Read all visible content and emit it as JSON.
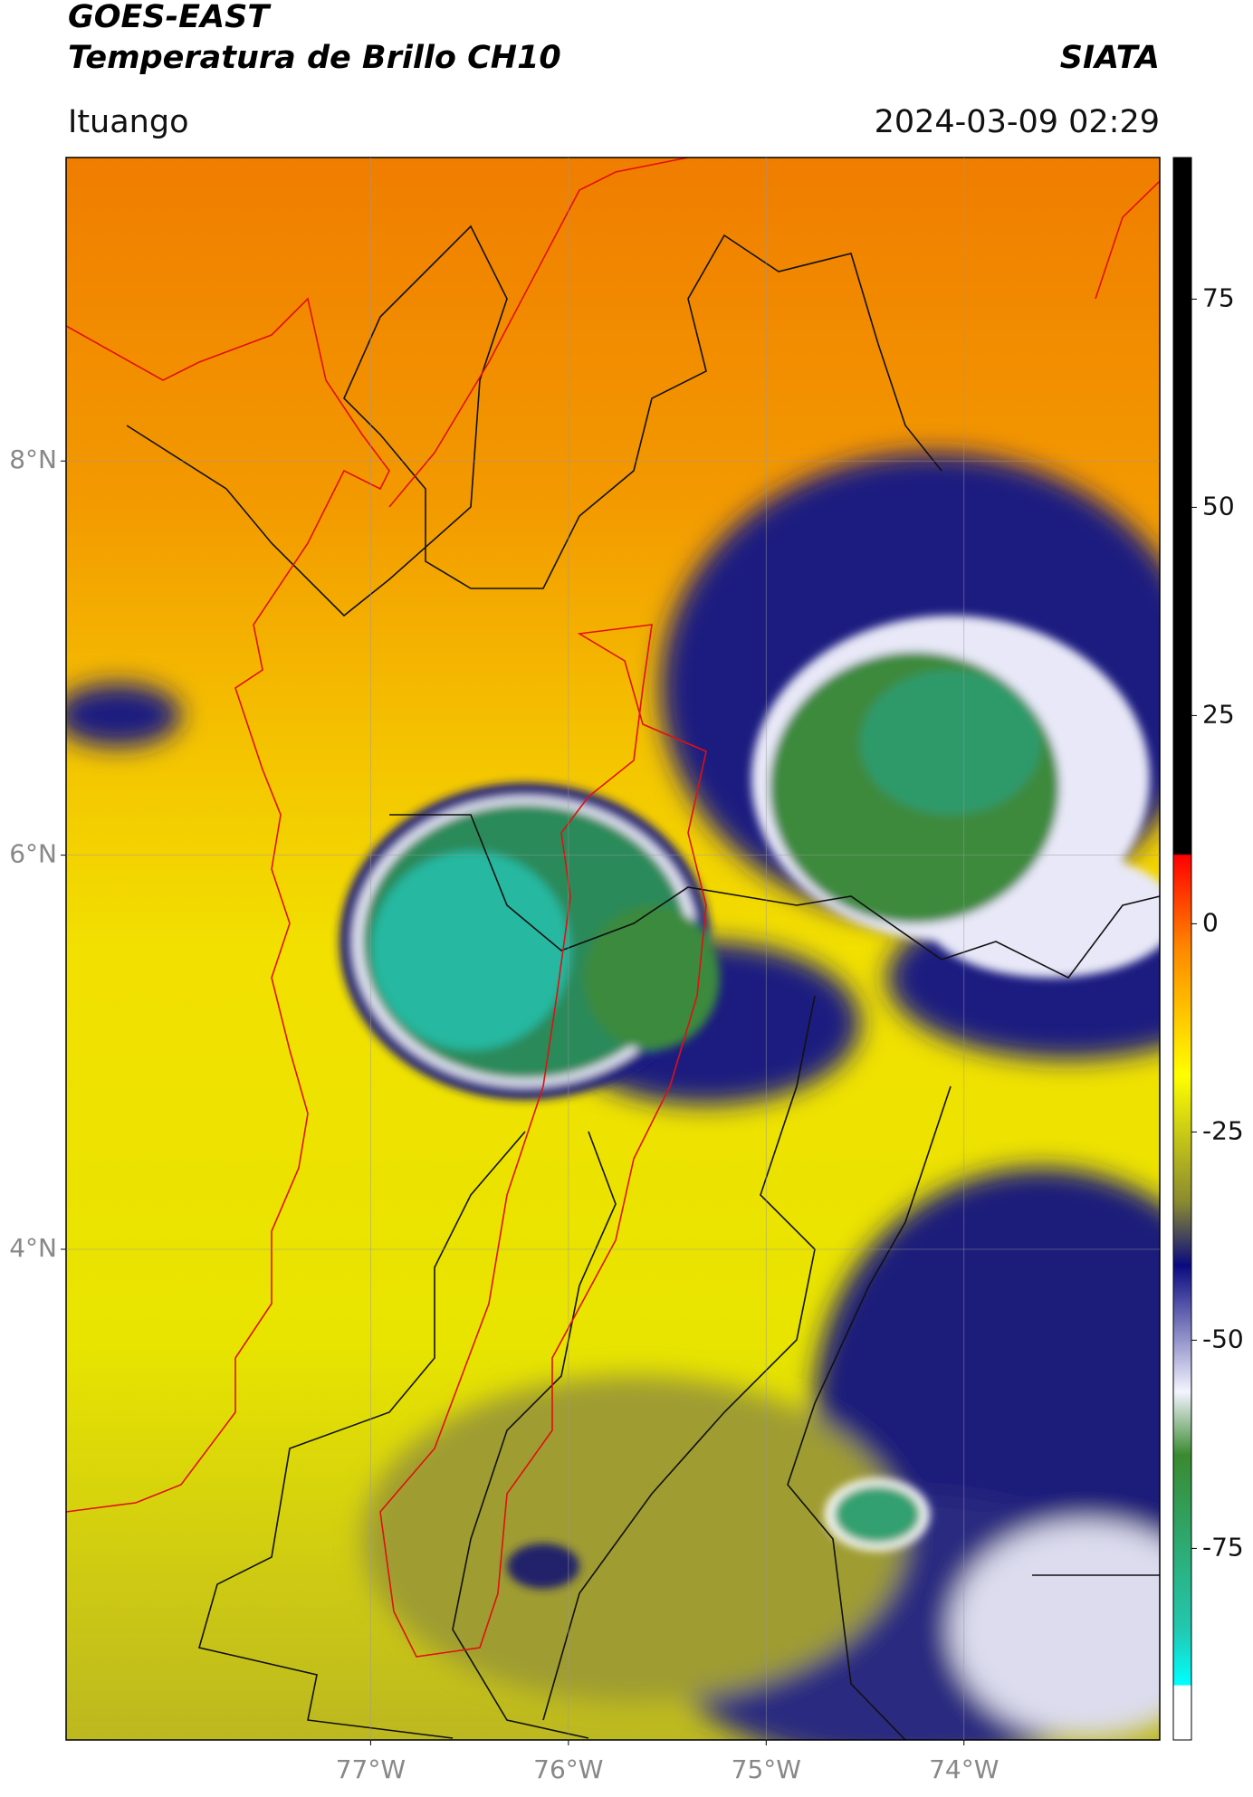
{
  "header": {
    "satellite": "GOES-EAST",
    "product": "Temperatura de Brillo CH10",
    "org": "SIATA",
    "region": "Ituango",
    "datetime": "2024-03-09 02:29"
  },
  "map": {
    "lonlim": [
      -78.54,
      -73.01
    ],
    "latlim": [
      1.51,
      9.54
    ],
    "lat_ticks": [
      {
        "value": 8,
        "label": "8°N"
      },
      {
        "value": 6,
        "label": "6°N"
      },
      {
        "value": 4,
        "label": "4°N"
      }
    ],
    "lon_ticks": [
      {
        "value": -77,
        "label": "77°W"
      },
      {
        "value": -76,
        "label": "76°W"
      },
      {
        "value": -75,
        "label": "75°W"
      },
      {
        "value": -74,
        "label": "74°W"
      }
    ]
  },
  "colorbar": {
    "lim": [
      -98,
      92
    ],
    "ticks": [
      -75,
      -50,
      -25,
      0,
      25,
      50,
      75
    ]
  }
}
